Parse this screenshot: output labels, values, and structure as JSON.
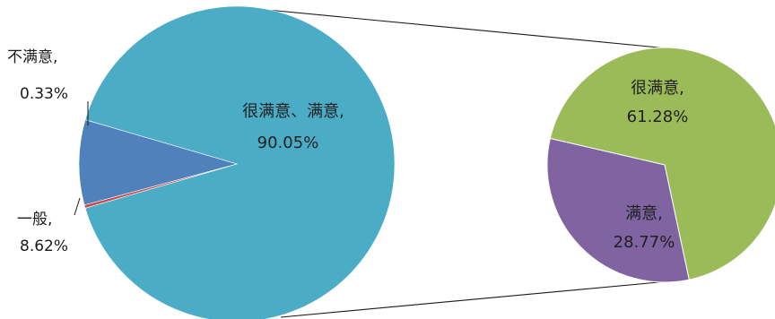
{
  "chart_data": {
    "type": "pie",
    "variant": "pie-of-pie",
    "main": {
      "slices": [
        {
          "name": "很满意、满意",
          "value": 90.05,
          "label_name": "很满意、满意,",
          "label_value": "90.05%",
          "color": "#4bacc6"
        },
        {
          "name": "不满意",
          "value": 0.33,
          "label_name": "不满意,",
          "label_value": "0.33%",
          "color": "#c0504d"
        },
        {
          "name": "一般",
          "value": 8.62,
          "label_name": "一般,",
          "label_value": "8.62%",
          "color": "#4f81bd"
        }
      ]
    },
    "secondary": {
      "slices": [
        {
          "name": "很满意",
          "value": 61.28,
          "label_name": "很满意,",
          "label_value": "61.28%",
          "color": "#9bbb59"
        },
        {
          "name": "满意",
          "value": 28.77,
          "label_name": "满意,",
          "label_value": "28.77%",
          "color": "#8064a2"
        }
      ]
    },
    "connector_color": "#1a1a1a"
  }
}
